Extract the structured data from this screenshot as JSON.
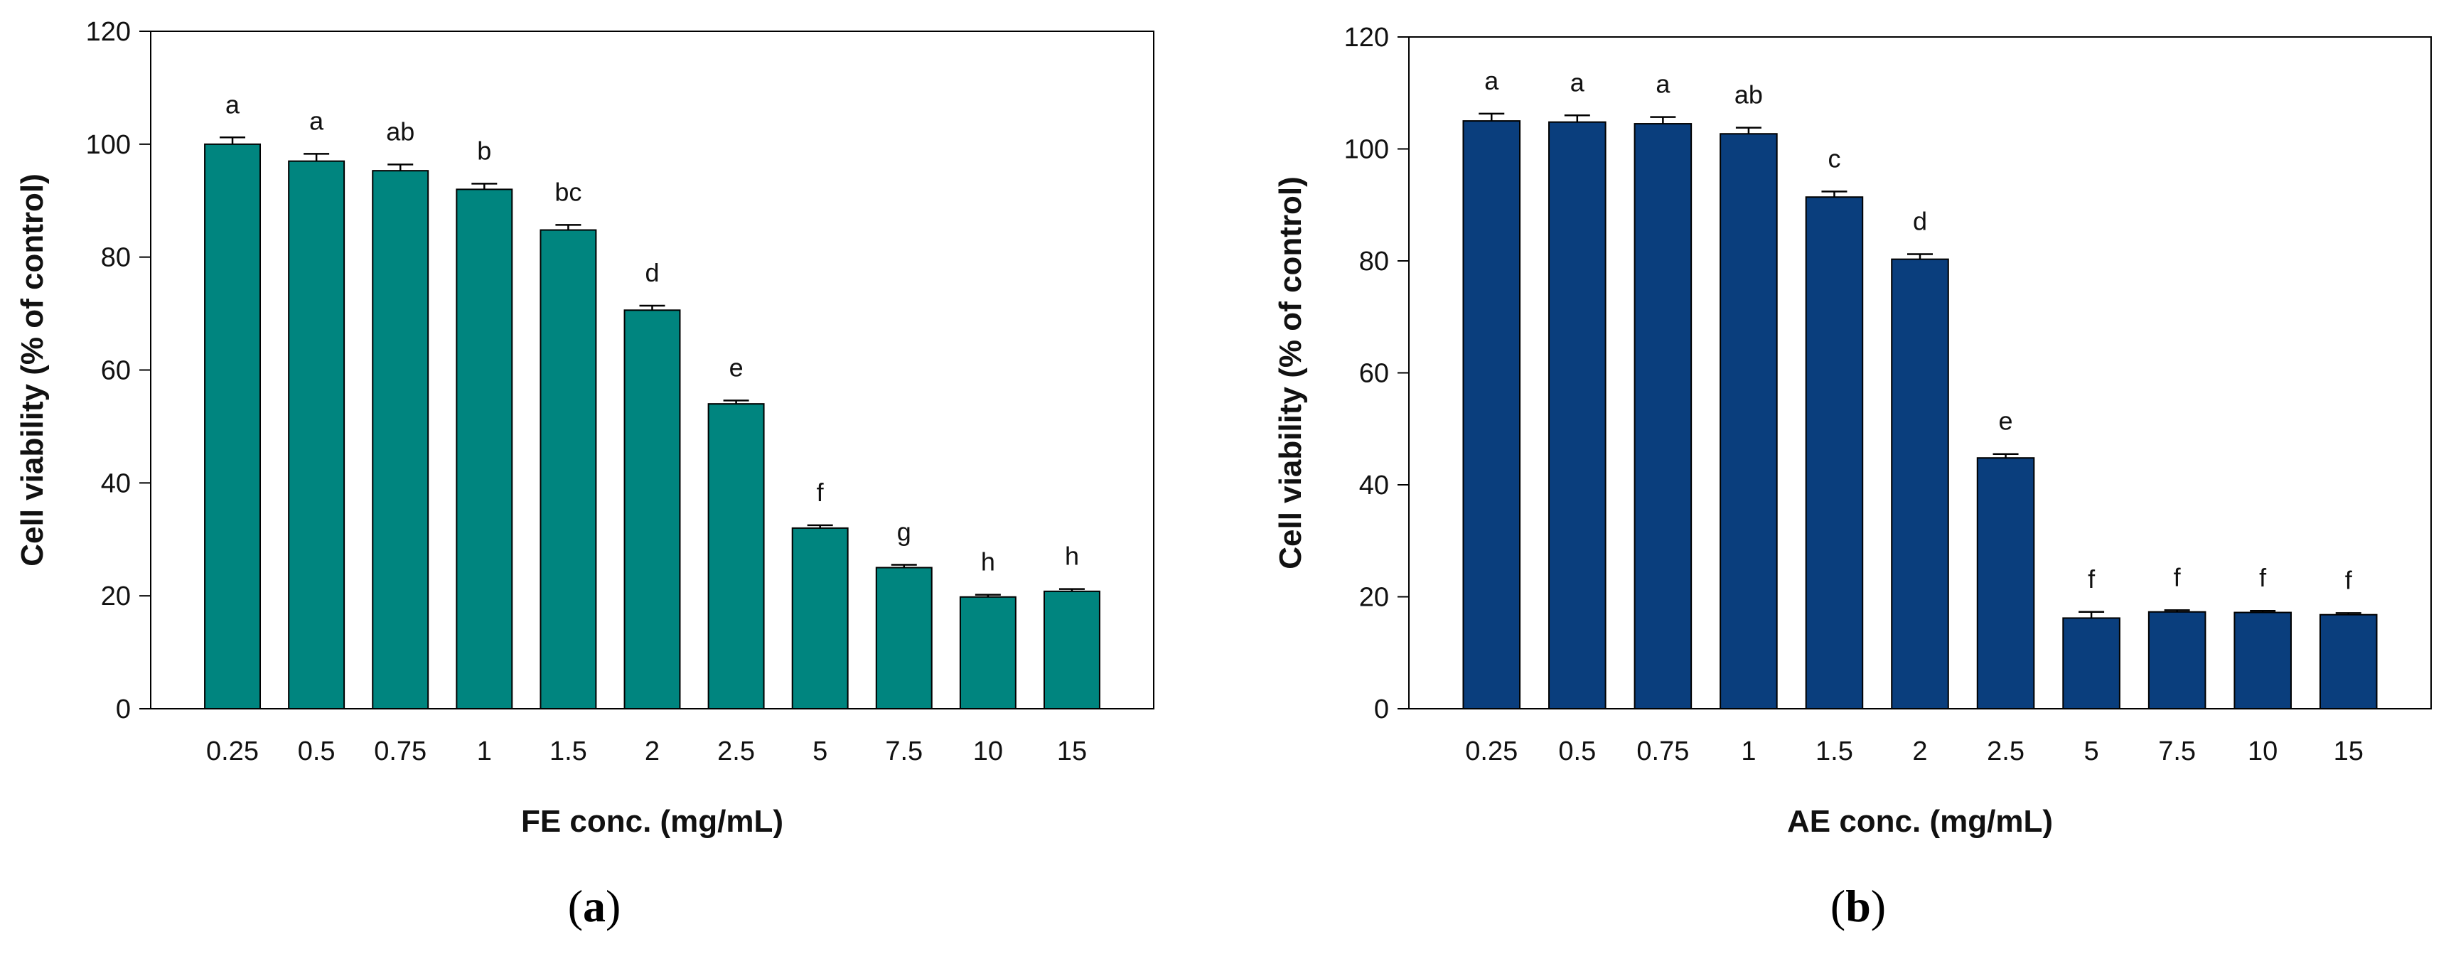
{
  "chart_data": [
    {
      "type": "bar",
      "panel": "a",
      "categories": [
        "0.25",
        "0.5",
        "0.75",
        "1",
        "1.5",
        "2",
        "2.5",
        "5",
        "7.5",
        "10",
        "15"
      ],
      "values": [
        100,
        97,
        95.3,
        92,
        84.8,
        70.6,
        54,
        32,
        25,
        19.8,
        20.8
      ],
      "errors": [
        1.2,
        1.3,
        1.1,
        1.0,
        0.9,
        0.8,
        0.6,
        0.5,
        0.5,
        0.4,
        0.4
      ],
      "significance": [
        "a",
        "a",
        "ab",
        "b",
        "bc",
        "d",
        "e",
        "f",
        "g",
        "h",
        "h"
      ],
      "xlabel": "FE conc. (mg/mL)",
      "ylabel": "Cell viability (% of control)",
      "ylim": [
        0,
        120
      ],
      "yticks": [
        "0",
        "20",
        "40",
        "60",
        "80",
        "100",
        "120"
      ],
      "color": "#00857f",
      "caption": {
        "open": "(",
        "letter": "a",
        "close": ")"
      }
    },
    {
      "type": "bar",
      "panel": "b",
      "categories": [
        "0.25",
        "0.5",
        "0.75",
        "1",
        "1.5",
        "2",
        "2.5",
        "5",
        "7.5",
        "10",
        "15"
      ],
      "values": [
        105,
        104.8,
        104.5,
        102.7,
        91.4,
        80.3,
        44.8,
        16.2,
        17.3,
        17.2,
        16.8
      ],
      "errors": [
        1.3,
        1.2,
        1.2,
        1.1,
        1.0,
        0.9,
        0.7,
        1.1,
        0.3,
        0.3,
        0.3
      ],
      "significance": [
        "a",
        "a",
        "a",
        "ab",
        "c",
        "d",
        "e",
        "f",
        "f",
        "f",
        "f"
      ],
      "xlabel": "AE conc. (mg/mL)",
      "ylabel": "Cell viability (% of control)",
      "ylim": [
        0,
        120
      ],
      "yticks": [
        "0",
        "20",
        "40",
        "60",
        "80",
        "100",
        "120"
      ],
      "color": "#0a3e7d",
      "caption": {
        "open": "(",
        "letter": "b",
        "close": ")"
      }
    }
  ]
}
